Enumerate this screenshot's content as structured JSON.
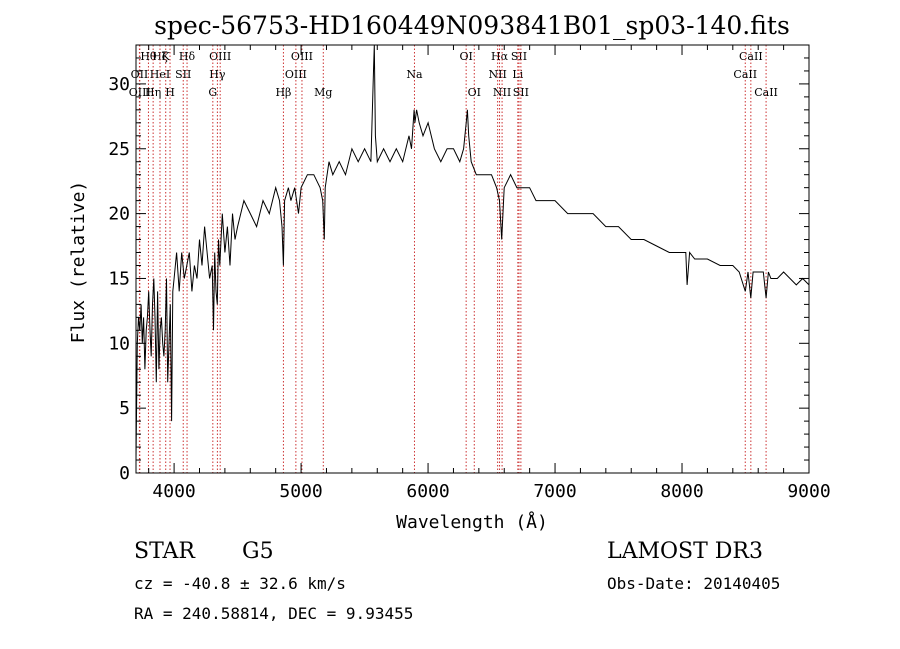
{
  "chart_data": {
    "type": "line",
    "title": "spec-56753-HD160449N093841B01_sp03-140.fits",
    "xlabel": "Wavelength (Å)",
    "ylabel": "Flux (relative)",
    "xlim": [
      3700,
      9000
    ],
    "ylim": [
      0,
      33
    ],
    "x_ticks": [
      4000,
      5000,
      6000,
      7000,
      8000,
      9000
    ],
    "x_minor_step": 200,
    "y_ticks": [
      0,
      5,
      10,
      15,
      20,
      25,
      30
    ],
    "y_minor_step": 1,
    "grid": false,
    "series": [
      {
        "name": "Flux",
        "color": "#000000",
        "x": [
          3700,
          3710,
          3720,
          3730,
          3740,
          3750,
          3760,
          3770,
          3780,
          3790,
          3800,
          3810,
          3820,
          3830,
          3840,
          3850,
          3860,
          3870,
          3880,
          3890,
          3900,
          3910,
          3920,
          3930,
          3940,
          3950,
          3960,
          3970,
          3980,
          3990,
          4000,
          4020,
          4040,
          4060,
          4080,
          4100,
          4120,
          4140,
          4160,
          4180,
          4200,
          4220,
          4240,
          4260,
          4280,
          4300,
          4310,
          4320,
          4330,
          4340,
          4350,
          4360,
          4380,
          4400,
          4420,
          4440,
          4460,
          4480,
          4500,
          4550,
          4600,
          4650,
          4700,
          4750,
          4800,
          4830,
          4850,
          4861,
          4870,
          4900,
          4920,
          4950,
          4980,
          5000,
          5050,
          5100,
          5150,
          5170,
          5183,
          5190,
          5220,
          5250,
          5300,
          5350,
          5400,
          5450,
          5500,
          5550,
          5570,
          5577,
          5585,
          5600,
          5650,
          5700,
          5750,
          5800,
          5850,
          5870,
          5890,
          5896,
          5910,
          5930,
          5960,
          6000,
          6050,
          6100,
          6150,
          6200,
          6250,
          6280,
          6290,
          6300,
          6310,
          6320,
          6340,
          6380,
          6400,
          6450,
          6500,
          6540,
          6563,
          6580,
          6600,
          6650,
          6700,
          6750,
          6800,
          6850,
          6900,
          6950,
          7000,
          7100,
          7200,
          7300,
          7400,
          7500,
          7600,
          7700,
          7800,
          7900,
          8000,
          8030,
          8040,
          8060,
          8100,
          8200,
          8300,
          8400,
          8450,
          8498,
          8520,
          8542,
          8560,
          8600,
          8640,
          8662,
          8680,
          8700,
          8750,
          8800,
          8850,
          8900,
          8950,
          9000
        ],
        "y": [
          1,
          10,
          12,
          11,
          13,
          10,
          12,
          8,
          11,
          12,
          14,
          11,
          9,
          13,
          15,
          12,
          7,
          14,
          8,
          11,
          12,
          10,
          9,
          11,
          15,
          7,
          10,
          13,
          4,
          14,
          15,
          17,
          14,
          17,
          15,
          16,
          17,
          14,
          16,
          15,
          18,
          16,
          19,
          17,
          15,
          16,
          11,
          17,
          14,
          13,
          18,
          16,
          20,
          17,
          19,
          16,
          20,
          18,
          19,
          21,
          20,
          19,
          21,
          20,
          22,
          21,
          19,
          16,
          21,
          22,
          21,
          22,
          20,
          22,
          23,
          23,
          22,
          21,
          18,
          22,
          24,
          23,
          24,
          23,
          25,
          24,
          25,
          24,
          31,
          33,
          26,
          24,
          25,
          24,
          25,
          24,
          26,
          25,
          28,
          27,
          28,
          27,
          26,
          27,
          25,
          24,
          25,
          25,
          24,
          25,
          26,
          27,
          28,
          26,
          24,
          23,
          23,
          23,
          23,
          22,
          21,
          18,
          22,
          23,
          22,
          22,
          22,
          21,
          21,
          21,
          21,
          20,
          20,
          20,
          19,
          19,
          18,
          18,
          17.5,
          17,
          17,
          17,
          14.5,
          17,
          16.5,
          16.5,
          16,
          16,
          15.5,
          14,
          15.5,
          13.5,
          15.5,
          15.5,
          15.5,
          13.5,
          15.5,
          15,
          15,
          15.5,
          15,
          14.5,
          15,
          14.5
        ]
      }
    ],
    "line_markers": [
      {
        "label": "Hθ",
        "wavelength": 3798,
        "row": 1
      },
      {
        "label": "OII",
        "wavelength": 3727,
        "row": 2
      },
      {
        "label": "OIII",
        "wavelength": 3730,
        "row": 3
      },
      {
        "label": "Hζ",
        "wavelength": 3889,
        "row": 1
      },
      {
        "label": "K",
        "wavelength": 3934,
        "row": 1
      },
      {
        "label": "HeI",
        "wavelength": 3889,
        "row": 2
      },
      {
        "label": "Hη",
        "wavelength": 3835,
        "row": 3
      },
      {
        "label": "H",
        "wavelength": 3968,
        "row": 3
      },
      {
        "label": "Hδ",
        "wavelength": 4102,
        "row": 1
      },
      {
        "label": "SII",
        "wavelength": 4072,
        "row": 2
      },
      {
        "label": "OIII",
        "wavelength": 4363,
        "row": 1
      },
      {
        "label": "Hγ",
        "wavelength": 4341,
        "row": 2
      },
      {
        "label": "G",
        "wavelength": 4305,
        "row": 3
      },
      {
        "label": "OIII",
        "wavelength": 5007,
        "row": 1
      },
      {
        "label": "OIII",
        "wavelength": 4959,
        "row": 2
      },
      {
        "label": "Hβ",
        "wavelength": 4861,
        "row": 3
      },
      {
        "label": "Mg",
        "wavelength": 5175,
        "row": 3
      },
      {
        "label": "Na",
        "wavelength": 5893,
        "row": 2
      },
      {
        "label": "OI",
        "wavelength": 6300,
        "row": 1
      },
      {
        "label": "OI",
        "wavelength": 6364,
        "row": 3
      },
      {
        "label": "Hα",
        "wavelength": 6563,
        "row": 1
      },
      {
        "label": "SII",
        "wavelength": 6716,
        "row": 1
      },
      {
        "label": "NII",
        "wavelength": 6548,
        "row": 2
      },
      {
        "label": "Li",
        "wavelength": 6707,
        "row": 2
      },
      {
        "label": "NII",
        "wavelength": 6583,
        "row": 3
      },
      {
        "label": "SII",
        "wavelength": 6731,
        "row": 3
      },
      {
        "label": "CaII",
        "wavelength": 8542,
        "row": 1
      },
      {
        "label": "CaII",
        "wavelength": 8498,
        "row": 2
      },
      {
        "label": "CaII",
        "wavelength": 8662,
        "row": 3
      }
    ],
    "marker_color": "#cc3333"
  },
  "info": {
    "object_class": "STAR",
    "subclass": "G5",
    "survey": "LAMOST DR3",
    "redshift_text": "cz = -40.8 ± 32.6 km/s",
    "obs_date": "Obs-Date: 20140405",
    "coords": "RA = 240.58814, DEC =    9.93455"
  }
}
